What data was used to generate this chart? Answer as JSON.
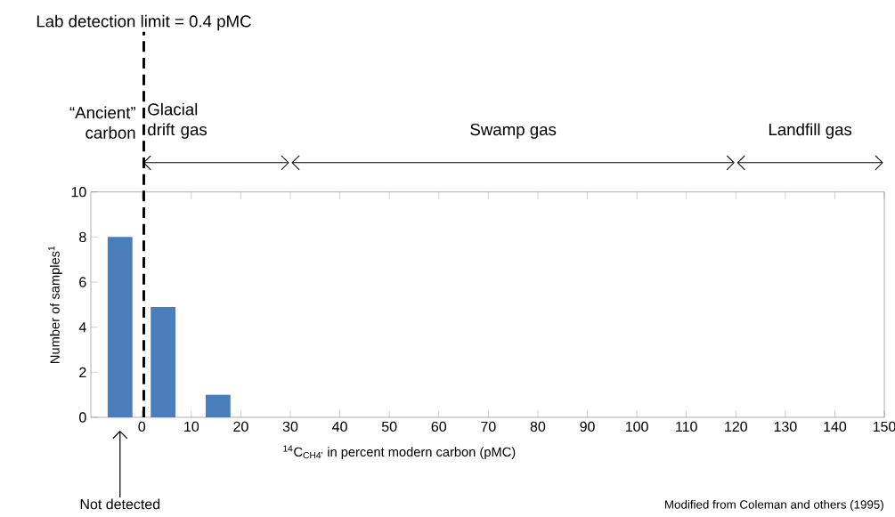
{
  "chart_data": {
    "type": "bar",
    "xlabel": "$^{14}$C$_{CH4'}$  in percent modern carbon (pMC)",
    "ylabel": "Number of samples$^{1}$",
    "x": [
      -4.4,
      4.3,
      15.4
    ],
    "values": [
      8,
      4.9,
      1
    ],
    "color": "#4a7ebb",
    "xlim": [
      -10.3,
      150
    ],
    "xticks": [
      0,
      10,
      20,
      30,
      40,
      50,
      60,
      70,
      80,
      90,
      100,
      110,
      120,
      130,
      140,
      150
    ],
    "ylim": [
      0,
      10
    ],
    "yticks": [
      0,
      2,
      4,
      6,
      8,
      10
    ],
    "grid": false,
    "ref_lines": [
      {
        "axis": "x",
        "value": 0.4,
        "label": "Lab detection limit = 0.4 pMC",
        "line_style": "dashed",
        "color": "#000000"
      }
    ],
    "annotations": [
      "“Ancient” carbon",
      "Glacial drift gas",
      "Swamp  gas",
      "Landfill gas",
      "Not detected",
      "Modified from Coleman and others (1995)"
    ]
  }
}
